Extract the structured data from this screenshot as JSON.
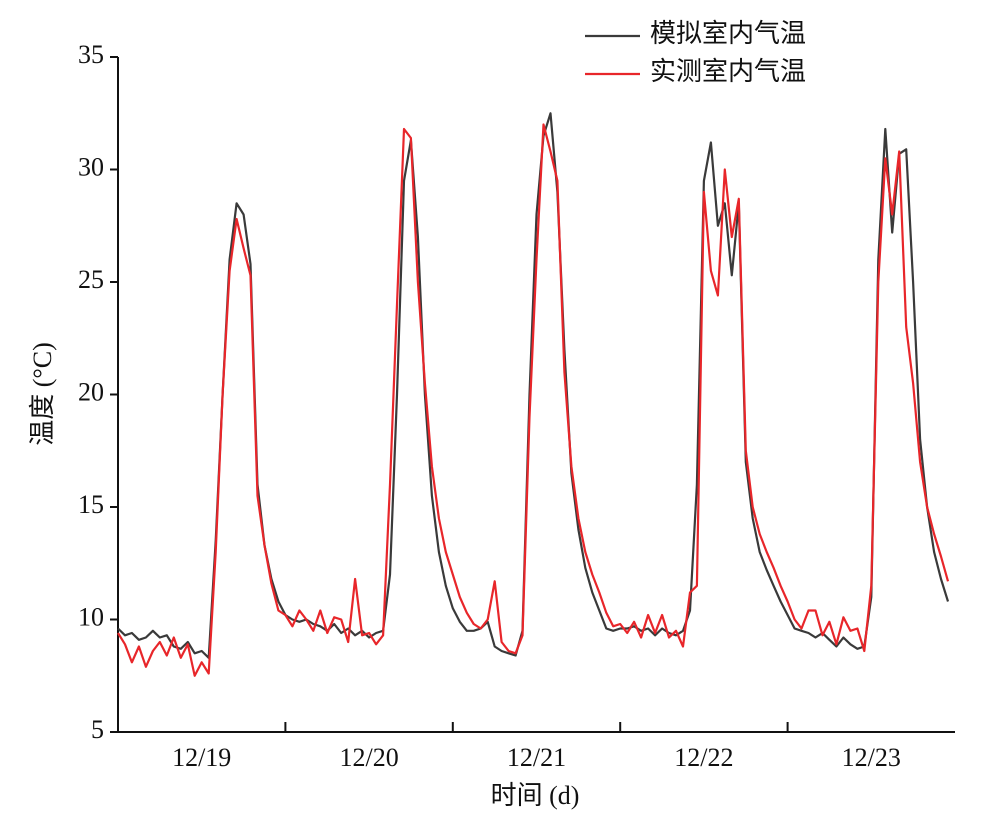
{
  "chart_data": {
    "type": "line",
    "xlabel": "时间 (d)",
    "ylabel": "温度 (°C)",
    "x": [
      0,
      1,
      2,
      3,
      4,
      5,
      6,
      7,
      8,
      9,
      10,
      11,
      12,
      13,
      14,
      15,
      16,
      17,
      18,
      19,
      20,
      21,
      22,
      23,
      24,
      25,
      26,
      27,
      28,
      29,
      30,
      31,
      32,
      33,
      34,
      35,
      36,
      37,
      38,
      39,
      40,
      41,
      42,
      43,
      44,
      45,
      46,
      47,
      48,
      49,
      50,
      51,
      52,
      53,
      54,
      55,
      56,
      57,
      58,
      59,
      60,
      61,
      62,
      63,
      64,
      65,
      66,
      67,
      68,
      69,
      70,
      71,
      72,
      73,
      74,
      75,
      76,
      77,
      78,
      79,
      80,
      81,
      82,
      83,
      84,
      85,
      86,
      87,
      88,
      89,
      90,
      91,
      92,
      93,
      94,
      95,
      96,
      97,
      98,
      99,
      100,
      101,
      102,
      103,
      104,
      105,
      106,
      107,
      108,
      109,
      110,
      111,
      112,
      113,
      114,
      115,
      116,
      117,
      118,
      119
    ],
    "xlim": [
      0,
      120
    ],
    "xticks": [
      {
        "value": 12,
        "label": "12/19"
      },
      {
        "value": 36,
        "label": "12/20"
      },
      {
        "value": 60,
        "label": "12/21"
      },
      {
        "value": 84,
        "label": "12/22"
      },
      {
        "value": 108,
        "label": "12/23"
      }
    ],
    "xtick_marks": [
      24,
      48,
      72,
      96
    ],
    "ylim": [
      5,
      35
    ],
    "yticks": [
      5,
      10,
      15,
      20,
      25,
      30,
      35
    ],
    "legend": "upper right",
    "series": [
      {
        "name": "模拟室内气温",
        "color": "#3a3a3a",
        "values": [
          9.6,
          9.3,
          9.4,
          9.1,
          9.2,
          9.5,
          9.2,
          9.3,
          8.8,
          8.7,
          9.0,
          8.5,
          8.6,
          8.3,
          13.5,
          20,
          26,
          28.5,
          28,
          25.8,
          16,
          13.3,
          11.8,
          10.8,
          10.2,
          10.0,
          9.9,
          10.0,
          9.8,
          9.7,
          9.5,
          9.8,
          9.4,
          9.6,
          9.3,
          9.5,
          9.2,
          9.4,
          9.5,
          12,
          20,
          29.5,
          31.3,
          27,
          20,
          15.5,
          13,
          11.5,
          10.5,
          9.9,
          9.5,
          9.5,
          9.6,
          9.9,
          8.8,
          8.6,
          8.5,
          8.4,
          9.5,
          20,
          28,
          31.5,
          32.5,
          29,
          22,
          16.5,
          14,
          12.3,
          11.2,
          10.4,
          9.6,
          9.5,
          9.6,
          9.6,
          9.7,
          9.5,
          9.6,
          9.3,
          9.6,
          9.4,
          9.3,
          9.5,
          10.4,
          16,
          29.5,
          31.2,
          27.5,
          28.5,
          25.3,
          28.5,
          17,
          14.5,
          13,
          12.2,
          11.5,
          10.8,
          10.2,
          9.6,
          9.5,
          9.4,
          9.2,
          9.4,
          9.1,
          8.8,
          9.2,
          8.9,
          8.7,
          8.8,
          11,
          26,
          31.8,
          27.2,
          30.7,
          30.9,
          25,
          18,
          15,
          13,
          11.8,
          10.8
        ]
      },
      {
        "name": "实测室内气温",
        "color": "#e8262a",
        "values": [
          9.4,
          8.9,
          8.1,
          8.8,
          7.9,
          8.6,
          9.0,
          8.4,
          9.2,
          8.3,
          8.9,
          7.5,
          8.1,
          7.6,
          13,
          20,
          25.5,
          27.8,
          26.5,
          25.3,
          15.5,
          13.3,
          11.6,
          10.4,
          10.2,
          9.7,
          10.4,
          10.0,
          9.5,
          10.4,
          9.4,
          10.1,
          10.0,
          9.0,
          11.8,
          9.3,
          9.4,
          8.9,
          9.3,
          16,
          24,
          31.8,
          31.4,
          25,
          20.5,
          16.8,
          14.5,
          13,
          12.0,
          11.0,
          10.3,
          9.8,
          9.6,
          10.0,
          11.7,
          9.0,
          8.6,
          8.5,
          9.3,
          19,
          26,
          32,
          30.8,
          29.5,
          21,
          16.8,
          14.5,
          13.0,
          12.0,
          11.2,
          10.3,
          9.7,
          9.8,
          9.4,
          9.9,
          9.2,
          10.2,
          9.4,
          10.2,
          9.2,
          9.5,
          8.8,
          11.2,
          11.5,
          29,
          25.5,
          24.4,
          30,
          27,
          28.7,
          17.5,
          15,
          13.8,
          13,
          12.3,
          11.5,
          10.8,
          10,
          9.6,
          10.4,
          10.4,
          9.3,
          9.9,
          8.9,
          10.1,
          9.5,
          9.6,
          8.6,
          11.5,
          25,
          30.5,
          28,
          30.8,
          23,
          20.5,
          17,
          15,
          13.8,
          12.8,
          11.7
        ]
      }
    ]
  }
}
